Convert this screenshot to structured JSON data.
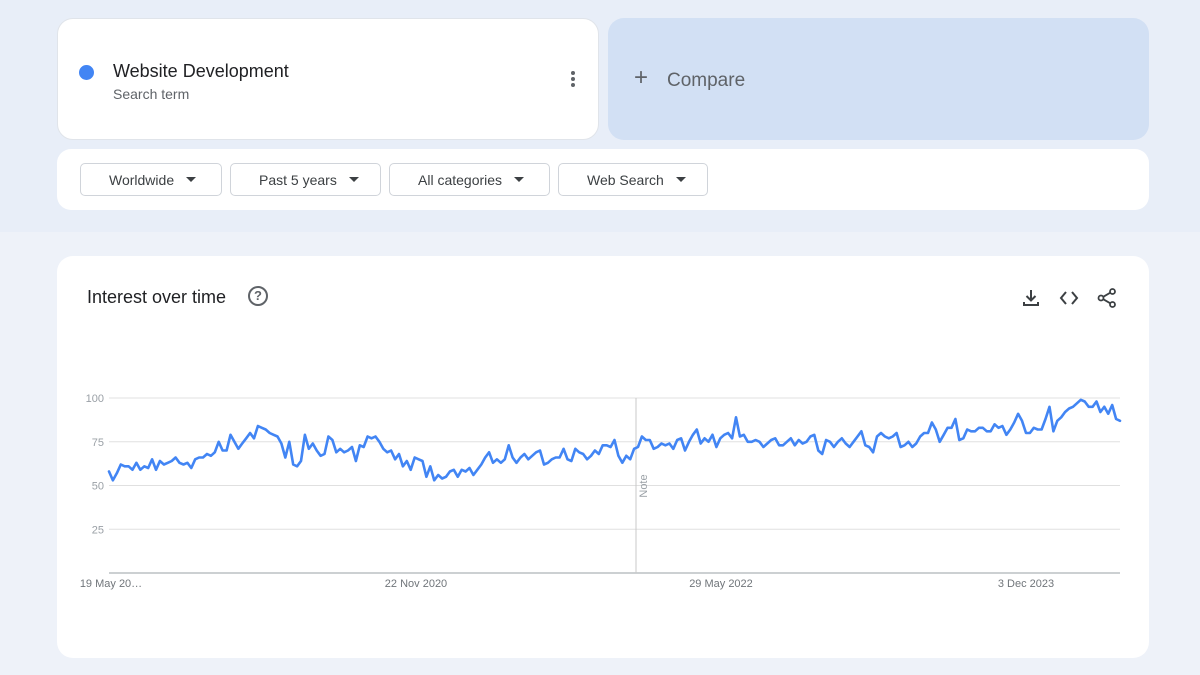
{
  "search_term": {
    "name": "Website Development",
    "subtitle": "Search term",
    "color": "#4285f4"
  },
  "compare": {
    "plus": "+",
    "label": "Compare"
  },
  "filters": [
    "Worldwide",
    "Past 5 years",
    "All categories",
    "Web Search"
  ],
  "card": {
    "title": "Interest over time",
    "help_glyph": "?",
    "icons": [
      "download-icon",
      "embed-code-icon",
      "share-icon"
    ]
  },
  "chart_data": {
    "type": "line",
    "series": [
      {
        "color": "#4285f4",
        "values": [
          58,
          53,
          57,
          62,
          61,
          61,
          59,
          63,
          59,
          61,
          60,
          65,
          59,
          64,
          62,
          63,
          64,
          66,
          63,
          62,
          63,
          60,
          65,
          66,
          66,
          68,
          67,
          69,
          75,
          70,
          70,
          79,
          75,
          71,
          74,
          77,
          80,
          77,
          84,
          83,
          82,
          80,
          79,
          78,
          74,
          66,
          75,
          62,
          61,
          64,
          79,
          71,
          74,
          70,
          67,
          68,
          78,
          76,
          69,
          71,
          69,
          70,
          72,
          64,
          73,
          72,
          78,
          77,
          78,
          75,
          71,
          69,
          70,
          65,
          68,
          61,
          64,
          59,
          66,
          65,
          64,
          55,
          61,
          53,
          56,
          54,
          55,
          58,
          59,
          55,
          59,
          58,
          60,
          56,
          59,
          62,
          66,
          69,
          63,
          65,
          63,
          65,
          73,
          66,
          63,
          66,
          68,
          65,
          67,
          69,
          70,
          62,
          63,
          65,
          66,
          66,
          71,
          65,
          64,
          71,
          69,
          68,
          65,
          67,
          70,
          68,
          73,
          73,
          72,
          76,
          67,
          63,
          67,
          65,
          71,
          72,
          78,
          76,
          76,
          71,
          72,
          74,
          73,
          74,
          71,
          76,
          77,
          70,
          75,
          79,
          82,
          74,
          77,
          75,
          79,
          72,
          77,
          79,
          80,
          77,
          89,
          78,
          79,
          75,
          75,
          76,
          75,
          72,
          74,
          76,
          77,
          73,
          73,
          75,
          77,
          73,
          76,
          74,
          75,
          78,
          79,
          70,
          68,
          76,
          75,
          72,
          75,
          77,
          74,
          72,
          75,
          78,
          81,
          73,
          72,
          69,
          78,
          80,
          78,
          77,
          78,
          80,
          72,
          73,
          75,
          72,
          74,
          78,
          80,
          80,
          86,
          82,
          75,
          79,
          83,
          83,
          88,
          76,
          77,
          82,
          81,
          81,
          83,
          83,
          81,
          81,
          85,
          83,
          84,
          79,
          82,
          86,
          91,
          87,
          80,
          80,
          83,
          82,
          82,
          88,
          95,
          81,
          87,
          89,
          92,
          94,
          95,
          97,
          99,
          98,
          95,
          95,
          98,
          92,
          95,
          91,
          96,
          88,
          87
        ]
      }
    ],
    "x_labels": [
      "19 May 20…",
      "22 Nov 2020",
      "29 May 2022",
      "3 Dec 2023"
    ],
    "y_ticks": [
      25,
      50,
      75,
      100
    ],
    "ylim": [
      0,
      100
    ],
    "note_label": "Note",
    "grid": true
  }
}
